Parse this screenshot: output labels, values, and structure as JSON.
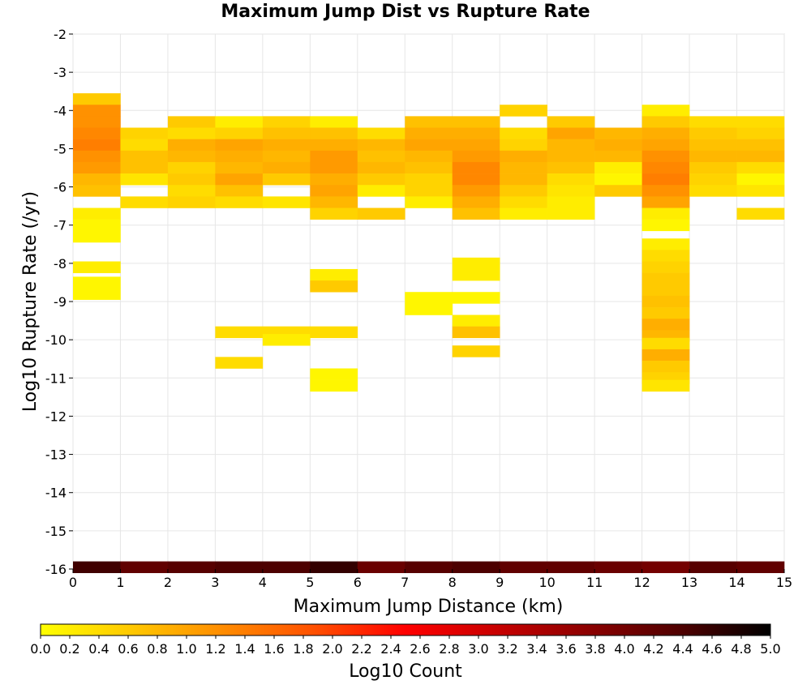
{
  "chart_data": {
    "type": "heatmap",
    "title": "Maximum Jump Dist vs Rupture Rate",
    "xlabel": "Maximum Jump Distance (km)",
    "ylabel": "Log10 Rupture Rate (/yr)",
    "xlim": [
      0,
      15
    ],
    "ylim": [
      -16,
      -2
    ],
    "x_ticks": [
      "0",
      "1",
      "2",
      "3",
      "4",
      "5",
      "6",
      "7",
      "8",
      "9",
      "10",
      "11",
      "12",
      "13",
      "14",
      "15"
    ],
    "y_ticks": [
      "-2",
      "-3",
      "-4",
      "-5",
      "-6",
      "-7",
      "-8",
      "-9",
      "-10",
      "-11",
      "-12",
      "-13",
      "-14",
      "-15",
      "-16"
    ],
    "grid": true,
    "x_bin_width": 1,
    "y_bin_height": 0.3,
    "colorbar": {
      "label": "Log10 Count",
      "range": [
        0,
        5
      ],
      "ticks": [
        "0.0",
        "0.2",
        "0.4",
        "0.6",
        "0.8",
        "1.0",
        "1.2",
        "1.4",
        "1.6",
        "1.8",
        "2.0",
        "2.2",
        "2.4",
        "2.6",
        "2.8",
        "3.0",
        "3.2",
        "3.4",
        "3.6",
        "3.8",
        "4.0",
        "4.2",
        "4.4",
        "4.6",
        "4.8",
        "5.0"
      ],
      "colors": [
        "#ffff00",
        "#ffc800",
        "#ff8c00",
        "#ff5000",
        "#ff0000",
        "#c80000",
        "#8c0000",
        "#500000",
        "#000000"
      ]
    },
    "columns": [
      {
        "x": 0,
        "cells": [
          [
            -3.7,
            0.6
          ],
          [
            -4.0,
            1.2
          ],
          [
            -4.3,
            1.2
          ],
          [
            -4.6,
            1.3
          ],
          [
            -4.9,
            1.4
          ],
          [
            -5.2,
            1.2
          ],
          [
            -5.5,
            1.1
          ],
          [
            -5.8,
            0.8
          ],
          [
            -6.1,
            0.7
          ],
          [
            -6.7,
            0.2
          ],
          [
            -7.0,
            0.1
          ],
          [
            -7.3,
            0.1
          ],
          [
            -8.1,
            0.2
          ],
          [
            -8.5,
            0.1
          ],
          [
            -8.8,
            0.1
          ],
          [
            -15.95,
            4.5
          ]
        ]
      },
      {
        "x": 1,
        "cells": [
          [
            -4.6,
            0.5
          ],
          [
            -4.9,
            0.4
          ],
          [
            -5.2,
            0.7
          ],
          [
            -5.5,
            0.7
          ],
          [
            -5.8,
            0.3
          ],
          [
            -6.4,
            0.4
          ],
          [
            -15.95,
            4.2
          ]
        ]
      },
      {
        "x": 2,
        "cells": [
          [
            -4.3,
            0.6
          ],
          [
            -4.6,
            0.4
          ],
          [
            -4.9,
            0.9
          ],
          [
            -5.2,
            0.8
          ],
          [
            -5.5,
            0.5
          ],
          [
            -5.8,
            0.6
          ],
          [
            -6.1,
            0.4
          ],
          [
            -6.4,
            0.5
          ],
          [
            -15.95,
            4.3
          ]
        ]
      },
      {
        "x": 3,
        "cells": [
          [
            -4.3,
            0.2
          ],
          [
            -4.6,
            0.5
          ],
          [
            -4.9,
            1.0
          ],
          [
            -5.2,
            0.9
          ],
          [
            -5.5,
            0.8
          ],
          [
            -5.8,
            1.0
          ],
          [
            -6.1,
            0.7
          ],
          [
            -6.4,
            0.4
          ],
          [
            -9.8,
            0.4
          ],
          [
            -10.6,
            0.4
          ],
          [
            -15.95,
            4.4
          ]
        ]
      },
      {
        "x": 4,
        "cells": [
          [
            -4.3,
            0.5
          ],
          [
            -4.6,
            0.7
          ],
          [
            -4.9,
            0.9
          ],
          [
            -5.2,
            0.8
          ],
          [
            -5.5,
            0.9
          ],
          [
            -5.8,
            0.6
          ],
          [
            -6.4,
            0.3
          ],
          [
            -9.8,
            0.4
          ],
          [
            -10.0,
            0.2
          ],
          [
            -15.95,
            4.4
          ]
        ]
      },
      {
        "x": 5,
        "cells": [
          [
            -4.3,
            0.2
          ],
          [
            -4.6,
            0.7
          ],
          [
            -4.9,
            0.9
          ],
          [
            -5.2,
            1.1
          ],
          [
            -5.5,
            1.1
          ],
          [
            -5.8,
            0.9
          ],
          [
            -6.1,
            1.0
          ],
          [
            -6.4,
            0.8
          ],
          [
            -6.7,
            0.5
          ],
          [
            -8.3,
            0.2
          ],
          [
            -8.6,
            0.6
          ],
          [
            -9.8,
            0.4
          ],
          [
            -10.9,
            0.1
          ],
          [
            -11.2,
            0.1
          ],
          [
            -15.95,
            4.6
          ]
        ]
      },
      {
        "x": 6,
        "cells": [
          [
            -4.6,
            0.4
          ],
          [
            -4.9,
            0.8
          ],
          [
            -5.2,
            0.7
          ],
          [
            -5.5,
            0.8
          ],
          [
            -5.8,
            0.6
          ],
          [
            -6.1,
            0.2
          ],
          [
            -6.7,
            0.6
          ],
          [
            -15.95,
            4.1
          ]
        ]
      },
      {
        "x": 7,
        "cells": [
          [
            -4.3,
            0.7
          ],
          [
            -4.6,
            0.9
          ],
          [
            -4.9,
            1.0
          ],
          [
            -5.2,
            0.8
          ],
          [
            -5.5,
            0.7
          ],
          [
            -5.8,
            0.5
          ],
          [
            -6.1,
            0.5
          ],
          [
            -6.4,
            0.2
          ],
          [
            -8.9,
            0.1
          ],
          [
            -9.2,
            0.1
          ],
          [
            -15.95,
            4.3
          ]
        ]
      },
      {
        "x": 8,
        "cells": [
          [
            -4.3,
            0.7
          ],
          [
            -4.6,
            0.9
          ],
          [
            -4.9,
            1.0
          ],
          [
            -5.2,
            1.1
          ],
          [
            -5.5,
            1.3
          ],
          [
            -5.8,
            1.3
          ],
          [
            -6.1,
            1.1
          ],
          [
            -6.4,
            0.9
          ],
          [
            -6.7,
            0.7
          ],
          [
            -8.0,
            0.2
          ],
          [
            -8.3,
            0.2
          ],
          [
            -8.9,
            0.1
          ],
          [
            -9.5,
            0.2
          ],
          [
            -9.8,
            0.7
          ],
          [
            -10.3,
            0.5
          ],
          [
            -15.95,
            4.4
          ]
        ]
      },
      {
        "x": 9,
        "cells": [
          [
            -4.0,
            0.5
          ],
          [
            -4.6,
            0.4
          ],
          [
            -4.9,
            0.5
          ],
          [
            -5.2,
            0.9
          ],
          [
            -5.5,
            0.8
          ],
          [
            -5.8,
            0.8
          ],
          [
            -6.1,
            0.6
          ],
          [
            -6.4,
            0.4
          ],
          [
            -6.7,
            0.2
          ],
          [
            -15.95,
            4.2
          ]
        ]
      },
      {
        "x": 10,
        "cells": [
          [
            -4.3,
            0.6
          ],
          [
            -4.6,
            1.0
          ],
          [
            -4.9,
            0.8
          ],
          [
            -5.2,
            0.8
          ],
          [
            -5.5,
            0.7
          ],
          [
            -5.8,
            0.4
          ],
          [
            -6.1,
            0.3
          ],
          [
            -6.4,
            0.2
          ],
          [
            -6.7,
            0.2
          ],
          [
            -15.95,
            4.2
          ]
        ]
      },
      {
        "x": 11,
        "cells": [
          [
            -4.6,
            0.8
          ],
          [
            -4.9,
            0.9
          ],
          [
            -5.2,
            0.8
          ],
          [
            -5.5,
            0.2
          ],
          [
            -5.8,
            0.1
          ],
          [
            -6.1,
            0.6
          ],
          [
            -15.95,
            4.1
          ]
        ]
      },
      {
        "x": 12,
        "cells": [
          [
            -4.0,
            0.2
          ],
          [
            -4.3,
            0.6
          ],
          [
            -4.6,
            0.9
          ],
          [
            -4.9,
            1.0
          ],
          [
            -5.2,
            1.2
          ],
          [
            -5.5,
            1.3
          ],
          [
            -5.8,
            1.4
          ],
          [
            -6.1,
            1.2
          ],
          [
            -6.4,
            1.0
          ],
          [
            -6.7,
            0.2
          ],
          [
            -7.0,
            0.1
          ],
          [
            -7.5,
            0.2
          ],
          [
            -7.8,
            0.4
          ],
          [
            -8.1,
            0.5
          ],
          [
            -8.4,
            0.6
          ],
          [
            -8.7,
            0.6
          ],
          [
            -9.0,
            0.7
          ],
          [
            -9.3,
            0.6
          ],
          [
            -9.6,
            0.9
          ],
          [
            -9.9,
            0.8
          ],
          [
            -10.1,
            0.4
          ],
          [
            -10.4,
            0.9
          ],
          [
            -10.7,
            0.6
          ],
          [
            -11.0,
            0.5
          ],
          [
            -11.2,
            0.3
          ],
          [
            -15.95,
            4.0
          ]
        ]
      },
      {
        "x": 13,
        "cells": [
          [
            -4.3,
            0.4
          ],
          [
            -4.6,
            0.6
          ],
          [
            -4.9,
            0.7
          ],
          [
            -5.2,
            0.8
          ],
          [
            -5.5,
            0.6
          ],
          [
            -5.8,
            0.5
          ],
          [
            -6.1,
            0.4
          ],
          [
            -15.95,
            4.3
          ]
        ]
      },
      {
        "x": 14,
        "cells": [
          [
            -4.3,
            0.4
          ],
          [
            -4.6,
            0.5
          ],
          [
            -4.9,
            0.7
          ],
          [
            -5.2,
            0.8
          ],
          [
            -5.5,
            0.4
          ],
          [
            -5.8,
            0.1
          ],
          [
            -6.1,
            0.3
          ],
          [
            -6.7,
            0.4
          ],
          [
            -15.95,
            4.2
          ]
        ]
      }
    ]
  }
}
